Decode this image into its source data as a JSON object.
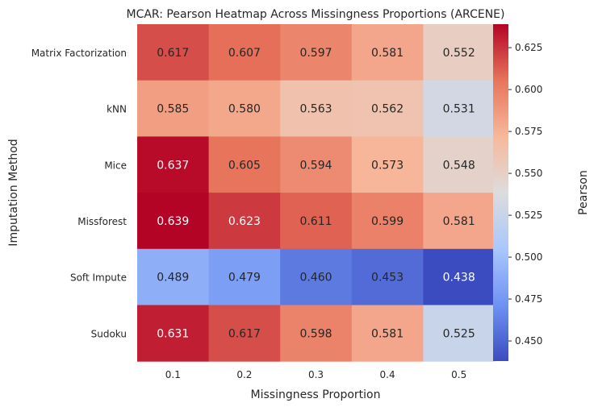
{
  "chart_data": {
    "type": "heatmap",
    "title": "MCAR: Pearson Heatmap Across Missingness Proportions (ARCENE)",
    "xlabel": "Missingness Proportion",
    "ylabel": "Imputation Method",
    "x_categories": [
      "0.1",
      "0.2",
      "0.3",
      "0.4",
      "0.5"
    ],
    "y_categories": [
      "Matrix Factorization",
      "kNN",
      "Mice",
      "Missforest",
      "Soft Impute",
      "Sudoku"
    ],
    "values": [
      [
        0.617,
        0.607,
        0.597,
        0.581,
        0.552
      ],
      [
        0.585,
        0.58,
        0.563,
        0.562,
        0.531
      ],
      [
        0.637,
        0.605,
        0.594,
        0.573,
        0.548
      ],
      [
        0.639,
        0.623,
        0.611,
        0.599,
        0.581
      ],
      [
        0.489,
        0.479,
        0.46,
        0.453,
        0.438
      ],
      [
        0.631,
        0.617,
        0.598,
        0.581,
        0.525
      ]
    ],
    "cell_labels": [
      [
        "0.617",
        "0.607",
        "0.597",
        "0.581",
        "0.552"
      ],
      [
        "0.585",
        "0.580",
        "0.563",
        "0.562",
        "0.531"
      ],
      [
        "0.637",
        "0.605",
        "0.594",
        "0.573",
        "0.548"
      ],
      [
        "0.639",
        "0.623",
        "0.611",
        "0.599",
        "0.581"
      ],
      [
        "0.489",
        "0.479",
        "0.460",
        "0.453",
        "0.438"
      ],
      [
        "0.631",
        "0.617",
        "0.598",
        "0.581",
        "0.525"
      ]
    ],
    "colormap": "coolwarm",
    "colormap_stops": [
      "#3b4cc0",
      "#6f92f3",
      "#aac7fd",
      "#dddcdc",
      "#f7b89c",
      "#e7745b",
      "#b40426"
    ],
    "color_range": [
      0.438,
      0.639
    ],
    "colorbar": {
      "label": "Pearson",
      "ticks": [
        "0.450",
        "0.475",
        "0.500",
        "0.525",
        "0.550",
        "0.575",
        "0.600",
        "0.625"
      ]
    }
  }
}
